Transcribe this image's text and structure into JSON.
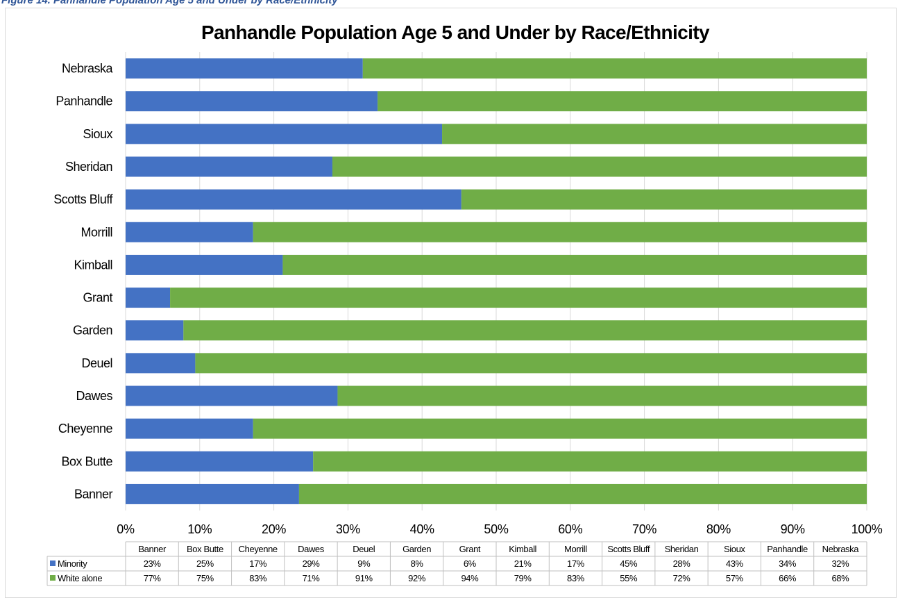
{
  "caption": "Figure 14. Panhandle Population Age 5 and Under by Race/Ethnicity",
  "chart_data": {
    "type": "bar",
    "orientation": "horizontal",
    "stacked": "percent",
    "title": "Panhandle Population Age 5 and Under by Race/Ethnicity",
    "categories": [
      "Banner",
      "Box Butte",
      "Cheyenne",
      "Dawes",
      "Deuel",
      "Garden",
      "Grant",
      "Kimball",
      "Morrill",
      "Scotts Bluff",
      "Sheridan",
      "Sioux",
      "Panhandle",
      "Nebraska"
    ],
    "series": [
      {
        "name": "Minority",
        "color": "#4472c4",
        "values": [
          23.4,
          25.3,
          17.2,
          28.6,
          9.4,
          7.8,
          6.0,
          21.2,
          17.2,
          45.3,
          27.9,
          42.7,
          34.0,
          32.0
        ],
        "labels": [
          "23%",
          "25%",
          "17%",
          "29%",
          "9%",
          "8%",
          "6%",
          "21%",
          "17%",
          "45%",
          "28%",
          "43%",
          "34%",
          "32%"
        ]
      },
      {
        "name": "White alone",
        "color": "#70ad47",
        "values": [
          76.6,
          74.7,
          82.8,
          71.4,
          90.6,
          92.2,
          94.0,
          78.8,
          82.8,
          54.7,
          72.1,
          57.3,
          66.0,
          68.0
        ],
        "labels": [
          "77%",
          "75%",
          "83%",
          "71%",
          "91%",
          "92%",
          "94%",
          "79%",
          "83%",
          "55%",
          "72%",
          "57%",
          "66%",
          "68%"
        ]
      }
    ],
    "xlim": [
      0,
      100
    ],
    "x_ticks": [
      "0%",
      "10%",
      "20%",
      "30%",
      "40%",
      "50%",
      "60%",
      "70%",
      "80%",
      "90%",
      "100%"
    ],
    "grid": true,
    "legend": "data-table-bottom"
  }
}
